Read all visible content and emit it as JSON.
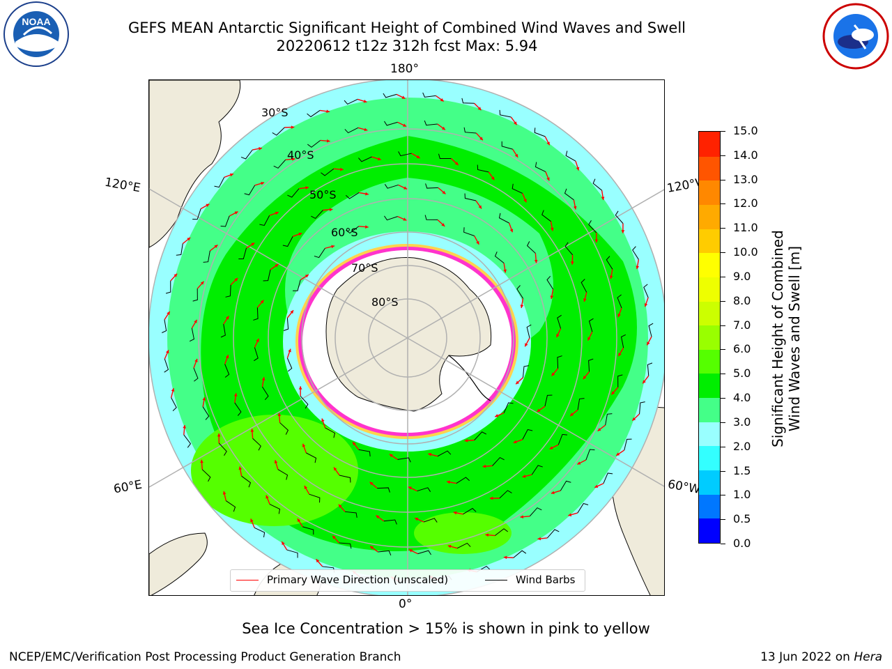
{
  "header": {
    "title_line1": "GEFS MEAN Antarctic Significant Height of Combined Wind Waves and Swell",
    "title_line2": "20220612 t12z 312h fcst   Max: 5.94"
  },
  "logos": {
    "left": {
      "name": "noaa-logo",
      "text": "NOAA",
      "ring_text": "NATIONAL OCEANIC AND ATMOSPHERIC ADMINISTRATION · U.S. DEPARTMENT OF COMMERCE"
    },
    "right": {
      "name": "national-weather-service-logo",
      "ring_text": "NATIONAL WEATHER SERVICE"
    }
  },
  "map": {
    "projection": "south polar stereographic",
    "longitude_labels": {
      "top": "180°",
      "bottom": "0°",
      "upper_left": "120°E",
      "upper_right": "120°W",
      "lower_left": "60°E",
      "lower_right": "60°W"
    },
    "latitude_labels": [
      "30°S",
      "40°S",
      "50°S",
      "60°S",
      "70°S",
      "80°S"
    ],
    "colors": {
      "land": "#efebdb",
      "ice": "#ffffff",
      "ice_edge_pink": "#ff33cc",
      "ice_edge_yellow": "#ffd24d"
    }
  },
  "colorbar": {
    "title_line1": "Significant Height of Combined",
    "title_line2": "Wind Waves and Swell [m]",
    "tick_labels": [
      "0.0",
      "0.5",
      "1.0",
      "1.5",
      "2.0",
      "3.0",
      "4.0",
      "5.0",
      "6.0",
      "7.0",
      "8.0",
      "9.0",
      "10.0",
      "11.0",
      "12.0",
      "13.0",
      "14.0",
      "15.0"
    ],
    "colors": [
      "#0000ff",
      "#0077ff",
      "#00ccff",
      "#33ffff",
      "#99ffff",
      "#44ff88",
      "#00ee00",
      "#55ff00",
      "#99ff00",
      "#ccff00",
      "#eeff00",
      "#ffff00",
      "#ffcc00",
      "#ffaa00",
      "#ff8800",
      "#ff5500",
      "#ff2200"
    ]
  },
  "legend": {
    "wave_direction": "Primary Wave Direction (unscaled)",
    "wind_barbs": "Wind Barbs",
    "wave_color": "#ff0000",
    "barb_color": "#000000"
  },
  "note": "Sea Ice Concentration > 15% is shown in pink to yellow",
  "footer": {
    "left": "NCEP/EMC/Verification Post Processing Product Generation Branch",
    "right_date": "13 Jun 2022 on",
    "right_host": "Hera"
  }
}
